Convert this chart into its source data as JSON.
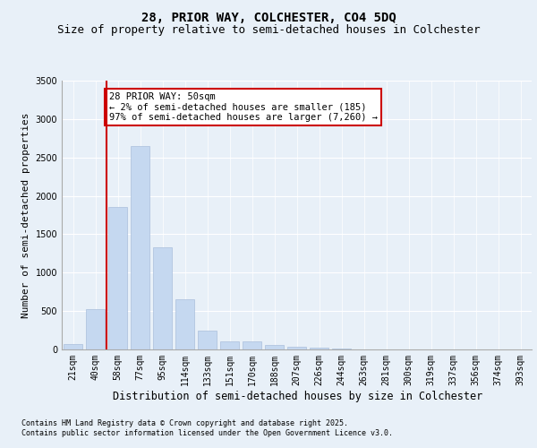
{
  "title": "28, PRIOR WAY, COLCHESTER, CO4 5DQ",
  "subtitle": "Size of property relative to semi-detached houses in Colchester",
  "xlabel": "Distribution of semi-detached houses by size in Colchester",
  "ylabel": "Number of semi-detached properties",
  "categories": [
    "21sqm",
    "40sqm",
    "58sqm",
    "77sqm",
    "95sqm",
    "114sqm",
    "133sqm",
    "151sqm",
    "170sqm",
    "188sqm",
    "207sqm",
    "226sqm",
    "244sqm",
    "263sqm",
    "281sqm",
    "300sqm",
    "319sqm",
    "337sqm",
    "356sqm",
    "374sqm",
    "393sqm"
  ],
  "values": [
    70,
    530,
    1850,
    2650,
    1330,
    650,
    240,
    105,
    100,
    55,
    30,
    20,
    15,
    5,
    5,
    0,
    0,
    0,
    0,
    0,
    0
  ],
  "bar_color": "#c5d8f0",
  "bar_edge_color": "#aabfdc",
  "vline_x_index": 1,
  "vline_color": "#cc0000",
  "annotation_text": "28 PRIOR WAY: 50sqm\n← 2% of semi-detached houses are smaller (185)\n97% of semi-detached houses are larger (7,260) →",
  "annotation_box_color": "#ffffff",
  "annotation_box_edge_color": "#cc0000",
  "ylim": [
    0,
    3500
  ],
  "yticks": [
    0,
    500,
    1000,
    1500,
    2000,
    2500,
    3000,
    3500
  ],
  "background_color": "#e8f0f8",
  "plot_background_color": "#e8f0f8",
  "footer_line1": "Contains HM Land Registry data © Crown copyright and database right 2025.",
  "footer_line2": "Contains public sector information licensed under the Open Government Licence v3.0.",
  "title_fontsize": 10,
  "subtitle_fontsize": 9,
  "tick_fontsize": 7,
  "ylabel_fontsize": 8,
  "xlabel_fontsize": 8.5,
  "footer_fontsize": 6,
  "annotation_fontsize": 7.5
}
